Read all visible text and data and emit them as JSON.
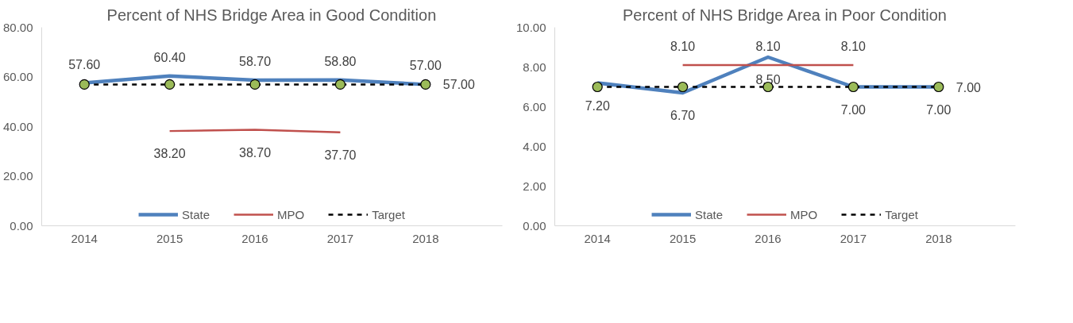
{
  "chart_data": [
    {
      "type": "line",
      "title": "Percent of NHS Bridge Area in Good Condition",
      "categories": [
        "2014",
        "2015",
        "2016",
        "2017",
        "2018"
      ],
      "series": [
        {
          "name": "State",
          "color": "#4f81bd",
          "values": [
            57.6,
            60.4,
            58.7,
            58.8,
            57.0
          ],
          "value_labels": [
            "57.60",
            "60.40",
            "58.70",
            "58.80",
            "57.00"
          ]
        },
        {
          "name": "MPO",
          "color": "#c0504d",
          "values": [
            null,
            38.2,
            38.7,
            37.7,
            null
          ],
          "value_labels": [
            null,
            "38.20",
            "38.70",
            "37.70",
            null
          ]
        },
        {
          "name": "Target",
          "color": "#000000",
          "line_style": "dashed",
          "marker": "circle",
          "values": [
            57.0,
            57.0,
            57.0,
            57.0,
            57.0
          ],
          "value_labels": [
            null,
            null,
            null,
            null,
            "57.00"
          ]
        }
      ],
      "ylim": [
        0,
        80
      ],
      "yticks": [
        {
          "value": 0,
          "label": "0.00"
        },
        {
          "value": 20,
          "label": "20.00"
        },
        {
          "value": 40,
          "label": "40.00"
        },
        {
          "value": 60,
          "label": "60.00"
        },
        {
          "value": 80,
          "label": "80.00"
        }
      ],
      "legend": "bottom"
    },
    {
      "type": "line",
      "title": "Percent of NHS Bridge Area in Poor Condition",
      "categories": [
        "2014",
        "2015",
        "2016",
        "2017",
        "2018"
      ],
      "series": [
        {
          "name": "State",
          "color": "#4f81bd",
          "values": [
            7.2,
            6.7,
            8.5,
            7.0,
            7.0
          ],
          "value_labels": [
            "7.20",
            "6.70",
            "8.50",
            "7.00",
            "7.00"
          ]
        },
        {
          "name": "MPO",
          "color": "#c0504d",
          "values": [
            null,
            8.1,
            8.1,
            8.1,
            null
          ],
          "value_labels": [
            null,
            "8.10",
            "8.10",
            "8.10",
            null
          ]
        },
        {
          "name": "Target",
          "color": "#000000",
          "line_style": "dashed",
          "marker": "circle",
          "values": [
            7.0,
            7.0,
            7.0,
            7.0,
            7.0
          ],
          "value_labels": [
            null,
            null,
            null,
            null,
            "7.00"
          ]
        }
      ],
      "ylim": [
        0,
        10
      ],
      "yticks": [
        {
          "value": 0,
          "label": "0.00"
        },
        {
          "value": 2,
          "label": "2.00"
        },
        {
          "value": 4,
          "label": "4.00"
        },
        {
          "value": 6,
          "label": "6.00"
        },
        {
          "value": 8,
          "label": "8.00"
        },
        {
          "value": 10,
          "label": "10.00"
        }
      ],
      "legend": "bottom"
    }
  ]
}
